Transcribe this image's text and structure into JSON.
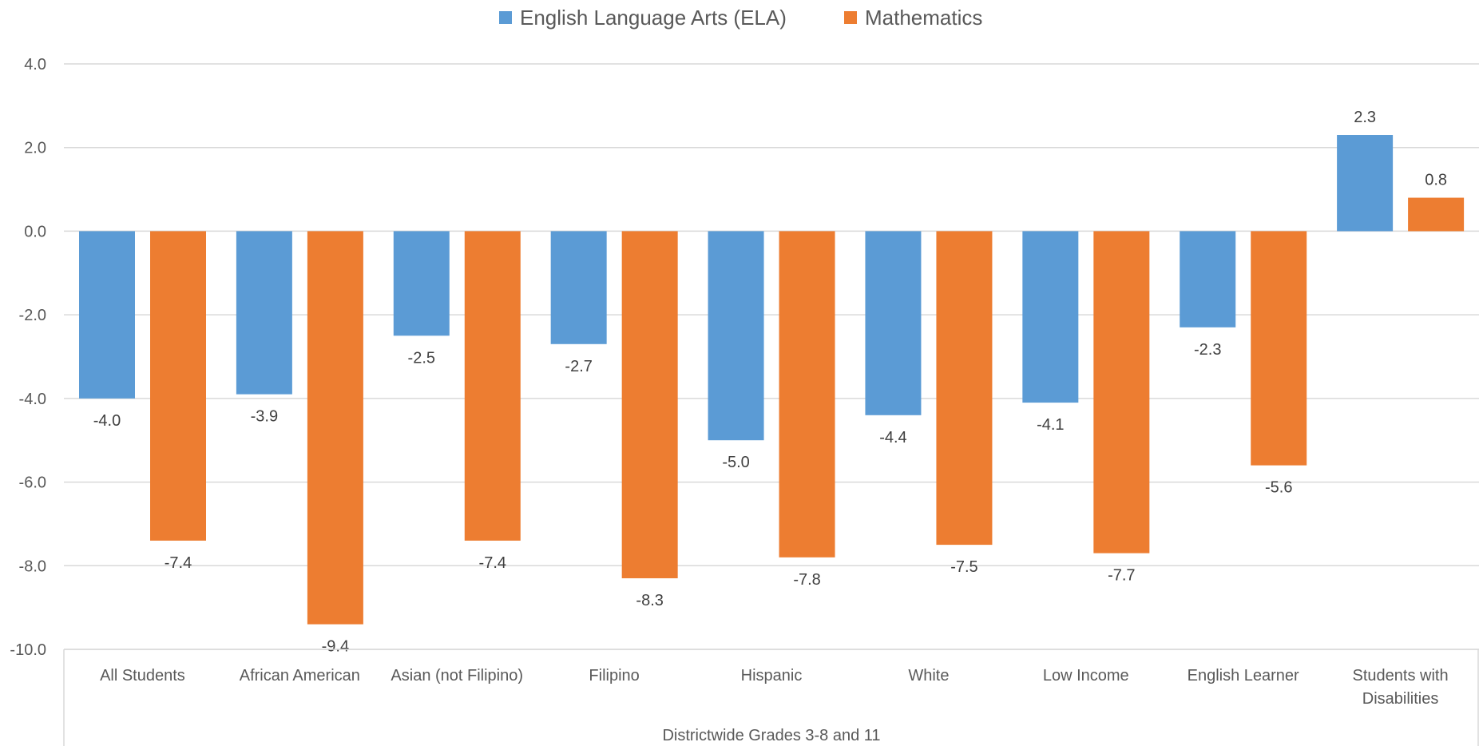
{
  "chart_data": {
    "type": "bar",
    "categories": [
      "All Students",
      "African American",
      "Asian (not Filipino)",
      "Filipino",
      "Hispanic",
      "White",
      "Low Income",
      "English Learner",
      "Students with Disabilities"
    ],
    "category_lines": [
      [
        "All Students"
      ],
      [
        "African American"
      ],
      [
        "Asian (not Filipino)"
      ],
      [
        "Filipino"
      ],
      [
        "Hispanic"
      ],
      [
        "White"
      ],
      [
        "Low Income"
      ],
      [
        "English Learner"
      ],
      [
        "Students with",
        "Disabilities"
      ]
    ],
    "series": [
      {
        "name": "English Language Arts (ELA)",
        "color": "#5B9BD5",
        "values": [
          -4.0,
          -3.9,
          -2.5,
          -2.7,
          -5.0,
          -4.4,
          -4.1,
          -2.3,
          2.3
        ]
      },
      {
        "name": "Mathematics",
        "color": "#ED7D31",
        "values": [
          -7.4,
          -9.4,
          -7.4,
          -8.3,
          -7.8,
          -7.5,
          -7.7,
          -5.6,
          0.8
        ]
      }
    ],
    "group_label": "Districtwide Grades 3-8 and 11",
    "ylim": [
      -10,
      4
    ],
    "yticks": [
      "4.0",
      "2.0",
      "0.0",
      "-2.0",
      "-4.0",
      "-6.0",
      "-8.0",
      "-10.0"
    ],
    "grid": true,
    "legend": "top-center",
    "title": "",
    "xlabel": "",
    "ylabel": ""
  }
}
